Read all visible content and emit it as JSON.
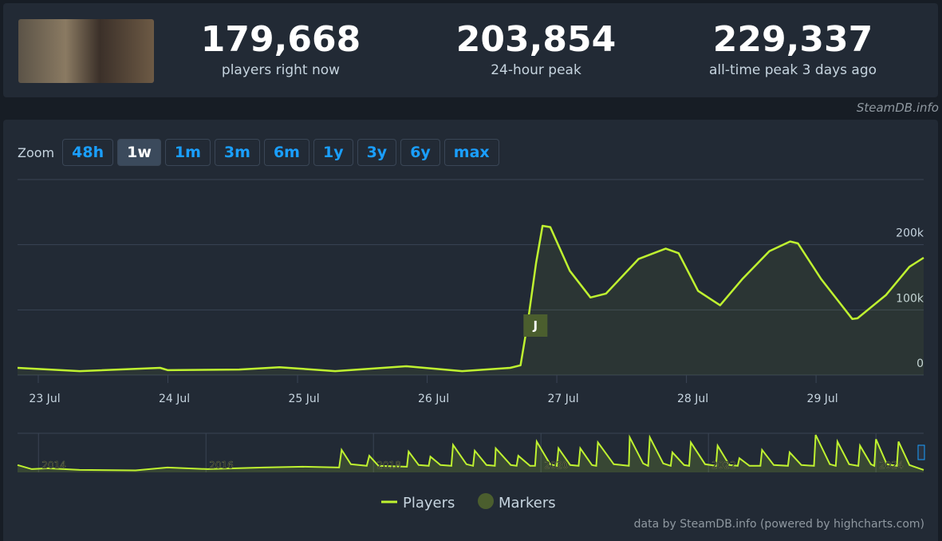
{
  "header": {
    "stats": [
      {
        "value": "179,668",
        "label": "players right now"
      },
      {
        "value": "203,854",
        "label": "24-hour peak"
      },
      {
        "value": "229,337",
        "label": "all-time peak 3 days ago"
      }
    ],
    "watermark": "SteamDB.info"
  },
  "zoom": {
    "label": "Zoom",
    "buttons": [
      "48h",
      "1w",
      "1m",
      "3m",
      "6m",
      "1y",
      "3y",
      "6y",
      "max"
    ],
    "active": "1w"
  },
  "credit": "data by SteamDB.info (powered by highcharts.com)",
  "chart_data": {
    "type": "line",
    "x": [
      22.84,
      23.32,
      23.94,
      24.0,
      24.55,
      24.86,
      25.29,
      25.84,
      26.27,
      26.64,
      26.72,
      26.78,
      26.84,
      26.89,
      26.95,
      27.1,
      27.26,
      27.38,
      27.63,
      27.84,
      27.94,
      28.09,
      28.26,
      28.43,
      28.64,
      28.8,
      28.86,
      29.04,
      29.28,
      29.32,
      29.54,
      29.72,
      29.83
    ],
    "series": [
      {
        "name": "Players",
        "color": "#bff230",
        "values": [
          11000,
          6000,
          11000,
          7500,
          8500,
          12000,
          6000,
          13500,
          6000,
          11000,
          15000,
          86000,
          172000,
          229000,
          227000,
          160000,
          119000,
          125000,
          178000,
          194000,
          187000,
          129000,
          107000,
          147000,
          190000,
          205000,
          202000,
          147000,
          86000,
          87000,
          123000,
          166000,
          180000
        ]
      }
    ],
    "xlim": [
      22.84,
      29.83
    ],
    "xticks": [
      {
        "value": 23,
        "label": "23 Jul"
      },
      {
        "value": 24,
        "label": "24 Jul"
      },
      {
        "value": 25,
        "label": "25 Jul"
      },
      {
        "value": 26,
        "label": "26 Jul"
      },
      {
        "value": 27,
        "label": "27 Jul"
      },
      {
        "value": 28,
        "label": "28 Jul"
      },
      {
        "value": 29,
        "label": "29 Jul"
      }
    ],
    "ylim": [
      0,
      300000
    ],
    "yticks": [
      0,
      {
        "value": 100000,
        "label": "100k"
      },
      {
        "value": 200000,
        "label": "200k"
      }
    ],
    "grid": true,
    "markers": {
      "name": "Markers",
      "color": "#4b5e2e",
      "flags": [
        {
          "x": 26.78,
          "label": "J"
        }
      ]
    },
    "navigator": {
      "color": "#bff230",
      "x": [
        2013.75,
        2013.92,
        2014.11,
        2014.49,
        2015.16,
        2015.54,
        2016.02,
        2016.68,
        2017.16,
        2017.59,
        2017.62,
        2017.73,
        2017.92,
        2017.95,
        2018.06,
        2018.4,
        2018.42,
        2018.54,
        2018.66,
        2018.68,
        2018.8,
        2018.93,
        2018.95,
        2019.11,
        2019.19,
        2019.21,
        2019.35,
        2019.45,
        2019.46,
        2019.64,
        2019.71,
        2019.73,
        2019.87,
        2019.93,
        2019.95,
        2020.11,
        2020.19,
        2020.21,
        2020.35,
        2020.45,
        2020.47,
        2020.61,
        2020.66,
        2020.68,
        2020.87,
        2021.05,
        2021.06,
        2021.22,
        2021.28,
        2021.3,
        2021.46,
        2021.55,
        2021.57,
        2021.71,
        2021.77,
        2021.79,
        2021.96,
        2022.09,
        2022.11,
        2022.25,
        2022.35,
        2022.37,
        2022.49,
        2022.62,
        2022.64,
        2022.78,
        2022.95,
        2022.97,
        2023.11,
        2023.26,
        2023.28,
        2023.45,
        2023.52,
        2023.54,
        2023.68,
        2023.79,
        2023.81,
        2023.94,
        2023.98,
        2024.0,
        2024.13,
        2024.25,
        2024.27,
        2024.4,
        2024.57
      ],
      "values": [
        45000,
        20000,
        25000,
        15000,
        12000,
        30000,
        20000,
        30000,
        35000,
        30000,
        138000,
        50000,
        40000,
        102000,
        40000,
        35000,
        128000,
        45000,
        40000,
        97000,
        45000,
        40000,
        169000,
        50000,
        40000,
        133000,
        45000,
        40000,
        148000,
        45000,
        40000,
        102000,
        40000,
        40000,
        189000,
        50000,
        40000,
        148000,
        45000,
        40000,
        148000,
        45000,
        40000,
        184000,
        50000,
        40000,
        215000,
        55000,
        40000,
        215000,
        55000,
        40000,
        123000,
        45000,
        40000,
        184000,
        50000,
        40000,
        164000,
        45000,
        40000,
        87000,
        40000,
        40000,
        138000,
        45000,
        40000,
        123000,
        45000,
        40000,
        230000,
        50000,
        40000,
        189000,
        50000,
        40000,
        164000,
        50000,
        40000,
        204000,
        50000,
        40000,
        189000,
        45000,
        15000
      ],
      "xlim": [
        2013.75,
        2024.57
      ],
      "ylim": [
        0,
        240000
      ],
      "xticks": [
        2014,
        2016,
        2018,
        2020,
        2022,
        2024
      ]
    }
  }
}
